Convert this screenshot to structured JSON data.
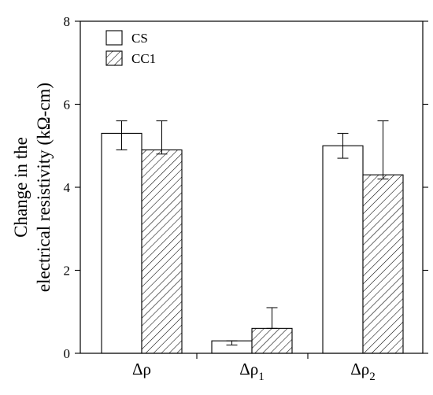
{
  "chart_data": {
    "type": "bar",
    "title": "",
    "xlabel": "",
    "ylabel_lines": [
      "Change in the",
      "electrical resistivity (kΩ-cm)"
    ],
    "ylim": [
      0,
      8
    ],
    "yticks": [
      0,
      2,
      4,
      6,
      8
    ],
    "ytick_labels": [
      "0",
      "2",
      "4",
      "6",
      "8"
    ],
    "categories": [
      {
        "base": "Δρ",
        "sub": ""
      },
      {
        "base": "Δρ",
        "sub": "1"
      },
      {
        "base": "Δρ",
        "sub": "2"
      }
    ],
    "series": [
      {
        "name": "CS",
        "fill": "plain",
        "values": [
          5.3,
          0.3,
          5.0
        ],
        "err_low": [
          4.9,
          0.2,
          4.7
        ],
        "err_high": [
          5.6,
          0.3,
          5.3
        ]
      },
      {
        "name": "CC1",
        "fill": "hatched",
        "values": [
          4.9,
          0.6,
          4.3
        ],
        "err_low": [
          4.8,
          0.6,
          4.2
        ],
        "err_high": [
          5.6,
          1.1,
          5.6
        ]
      }
    ],
    "legend_position": "top-left",
    "grid": false
  }
}
